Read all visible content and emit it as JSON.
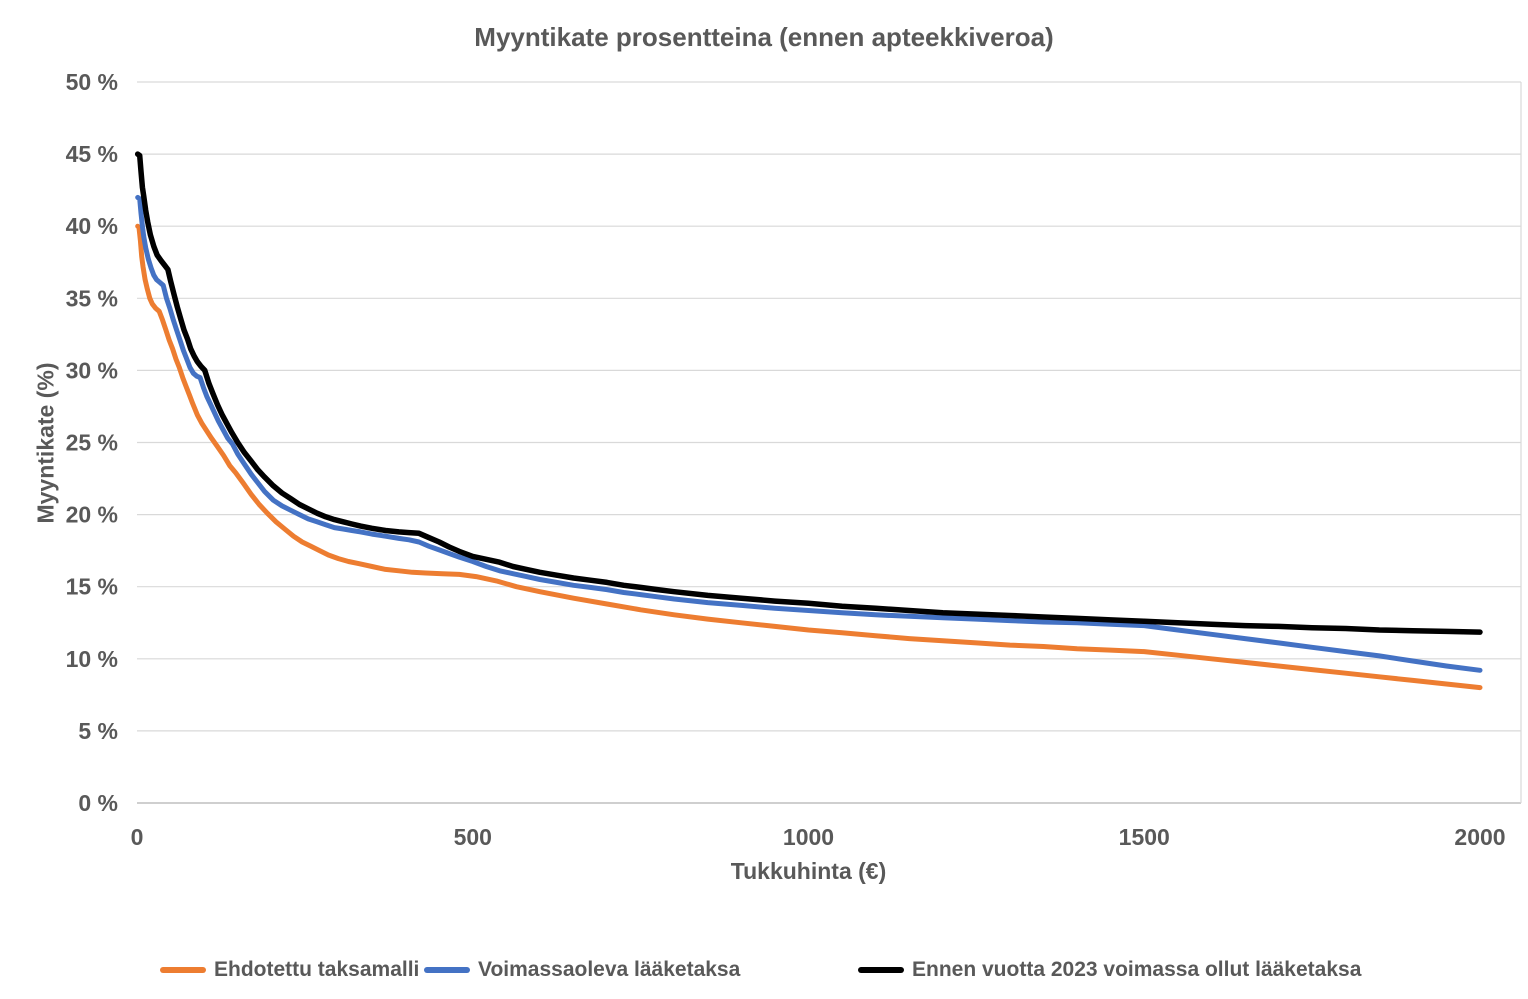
{
  "chart_data": {
    "type": "line",
    "title": "Myyntikate prosentteina (ennen apteekkiveroa)",
    "xlabel": "Tukkuhinta (€)",
    "ylabel": "Myyntikate (%)",
    "xlim": [
      0,
      2000
    ],
    "ylim": [
      0,
      50
    ],
    "x_ticks": [
      0,
      500,
      1000,
      1500,
      2000
    ],
    "y_ticks": [
      "0 %",
      "5 %",
      "10 %",
      "15 %",
      "20 %",
      "25 %",
      "30 %",
      "35 %",
      "40 %",
      "45 %",
      "50 %"
    ],
    "grid": "horizontal",
    "legend_position": "bottom",
    "series": [
      {
        "name": "Ehdotettu taksamalli",
        "color": "#ED7D31",
        "points": [
          [
            1,
            40
          ],
          [
            3,
            39.9
          ],
          [
            5,
            39.0
          ],
          [
            7,
            37.9
          ],
          [
            9,
            37.2
          ],
          [
            12,
            36.3
          ],
          [
            15,
            35.7
          ],
          [
            19,
            35.0
          ],
          [
            23,
            34.6
          ],
          [
            28,
            34.3
          ],
          [
            33,
            34.1
          ],
          [
            38,
            33.5
          ],
          [
            43,
            32.8
          ],
          [
            48,
            32.1
          ],
          [
            53,
            31.5
          ],
          [
            58,
            30.8
          ],
          [
            63,
            30.2
          ],
          [
            68,
            29.5
          ],
          [
            73,
            28.9
          ],
          [
            78,
            28.3
          ],
          [
            83,
            27.7
          ],
          [
            90,
            26.9
          ],
          [
            97,
            26.3
          ],
          [
            104,
            25.8
          ],
          [
            111,
            25.3
          ],
          [
            120,
            24.7
          ],
          [
            129,
            24.1
          ],
          [
            138,
            23.4
          ],
          [
            147,
            22.9
          ],
          [
            158,
            22.2
          ],
          [
            170,
            21.4
          ],
          [
            182,
            20.7
          ],
          [
            194,
            20.1
          ],
          [
            207,
            19.5
          ],
          [
            220,
            19.0
          ],
          [
            233,
            18.5
          ],
          [
            246,
            18.1
          ],
          [
            259,
            17.8
          ],
          [
            272,
            17.5
          ],
          [
            285,
            17.2
          ],
          [
            300,
            16.95
          ],
          [
            315,
            16.75
          ],
          [
            330,
            16.6
          ],
          [
            350,
            16.4
          ],
          [
            370,
            16.2
          ],
          [
            390,
            16.1
          ],
          [
            410,
            16.0
          ],
          [
            430,
            15.95
          ],
          [
            455,
            15.9
          ],
          [
            480,
            15.85
          ],
          [
            505,
            15.7
          ],
          [
            535,
            15.4
          ],
          [
            565,
            15.0
          ],
          [
            600,
            14.65
          ],
          [
            650,
            14.2
          ],
          [
            700,
            13.8
          ],
          [
            750,
            13.4
          ],
          [
            800,
            13.05
          ],
          [
            850,
            12.75
          ],
          [
            900,
            12.5
          ],
          [
            950,
            12.25
          ],
          [
            1000,
            12.0
          ],
          [
            1050,
            11.8
          ],
          [
            1100,
            11.6
          ],
          [
            1150,
            11.4
          ],
          [
            1200,
            11.25
          ],
          [
            1250,
            11.1
          ],
          [
            1300,
            10.95
          ],
          [
            1350,
            10.85
          ],
          [
            1400,
            10.7
          ],
          [
            1450,
            10.6
          ],
          [
            1500,
            10.5
          ],
          [
            1550,
            10.25
          ],
          [
            1600,
            10.0
          ],
          [
            1650,
            9.75
          ],
          [
            1700,
            9.5
          ],
          [
            1750,
            9.25
          ],
          [
            1800,
            9.0
          ],
          [
            1850,
            8.75
          ],
          [
            1900,
            8.5
          ],
          [
            1950,
            8.25
          ],
          [
            2000,
            8.0
          ]
        ]
      },
      {
        "name": "Voimassaoleva lääketaksa",
        "color": "#4472C4",
        "points": [
          [
            1,
            42
          ],
          [
            4,
            41.9
          ],
          [
            6,
            40.9
          ],
          [
            8,
            40.0
          ],
          [
            10,
            39.3
          ],
          [
            13,
            38.5
          ],
          [
            17,
            37.7
          ],
          [
            21,
            37.1
          ],
          [
            25,
            36.6
          ],
          [
            29,
            36.3
          ],
          [
            34,
            36.1
          ],
          [
            39,
            35.9
          ],
          [
            44,
            35.0
          ],
          [
            49,
            34.3
          ],
          [
            54,
            33.5
          ],
          [
            59,
            32.8
          ],
          [
            64,
            32.1
          ],
          [
            69,
            31.4
          ],
          [
            74,
            30.8
          ],
          [
            79,
            30.2
          ],
          [
            84,
            29.8
          ],
          [
            89,
            29.6
          ],
          [
            94,
            29.5
          ],
          [
            99,
            28.8
          ],
          [
            104,
            28.2
          ],
          [
            109,
            27.7
          ],
          [
            114,
            27.2
          ],
          [
            121,
            26.5
          ],
          [
            128,
            25.9
          ],
          [
            135,
            25.3
          ],
          [
            142,
            24.9
          ],
          [
            150,
            24.2
          ],
          [
            160,
            23.5
          ],
          [
            170,
            22.8
          ],
          [
            180,
            22.2
          ],
          [
            190,
            21.6
          ],
          [
            203,
            21.0
          ],
          [
            216,
            20.6
          ],
          [
            229,
            20.3
          ],
          [
            242,
            20.0
          ],
          [
            255,
            19.7
          ],
          [
            268,
            19.5
          ],
          [
            281,
            19.3
          ],
          [
            294,
            19.1
          ],
          [
            307,
            19.0
          ],
          [
            320,
            18.9
          ],
          [
            333,
            18.8
          ],
          [
            350,
            18.65
          ],
          [
            370,
            18.5
          ],
          [
            390,
            18.35
          ],
          [
            405,
            18.25
          ],
          [
            420,
            18.1
          ],
          [
            435,
            17.8
          ],
          [
            450,
            17.55
          ],
          [
            465,
            17.3
          ],
          [
            480,
            17.05
          ],
          [
            500,
            16.75
          ],
          [
            520,
            16.4
          ],
          [
            540,
            16.1
          ],
          [
            560,
            15.9
          ],
          [
            580,
            15.7
          ],
          [
            600,
            15.5
          ],
          [
            625,
            15.3
          ],
          [
            650,
            15.1
          ],
          [
            675,
            14.95
          ],
          [
            700,
            14.8
          ],
          [
            725,
            14.6
          ],
          [
            750,
            14.45
          ],
          [
            775,
            14.3
          ],
          [
            800,
            14.15
          ],
          [
            850,
            13.9
          ],
          [
            900,
            13.7
          ],
          [
            950,
            13.5
          ],
          [
            1000,
            13.35
          ],
          [
            1050,
            13.2
          ],
          [
            1100,
            13.05
          ],
          [
            1150,
            12.95
          ],
          [
            1200,
            12.85
          ],
          [
            1250,
            12.75
          ],
          [
            1300,
            12.65
          ],
          [
            1350,
            12.55
          ],
          [
            1400,
            12.5
          ],
          [
            1450,
            12.4
          ],
          [
            1500,
            12.3
          ],
          [
            1550,
            12.0
          ],
          [
            1600,
            11.7
          ],
          [
            1650,
            11.4
          ],
          [
            1700,
            11.1
          ],
          [
            1750,
            10.8
          ],
          [
            1800,
            10.5
          ],
          [
            1850,
            10.2
          ],
          [
            1900,
            9.85
          ],
          [
            1950,
            9.5
          ],
          [
            2000,
            9.2
          ]
        ]
      },
      {
        "name": "Ennen vuotta 2023 voimassa ollut lääketaksa",
        "color": "#000000",
        "points": [
          [
            1,
            45
          ],
          [
            4,
            44.9
          ],
          [
            6,
            43.8
          ],
          [
            8,
            42.7
          ],
          [
            10,
            42.1
          ],
          [
            13,
            41.1
          ],
          [
            16,
            40.3
          ],
          [
            20,
            39.4
          ],
          [
            25,
            38.6
          ],
          [
            30,
            38.0
          ],
          [
            36,
            37.6
          ],
          [
            41,
            37.3
          ],
          [
            46,
            37.0
          ],
          [
            50,
            36.2
          ],
          [
            55,
            35.3
          ],
          [
            60,
            34.4
          ],
          [
            65,
            33.6
          ],
          [
            70,
            32.8
          ],
          [
            75,
            32.2
          ],
          [
            80,
            31.5
          ],
          [
            85,
            31.0
          ],
          [
            90,
            30.6
          ],
          [
            95,
            30.3
          ],
          [
            101,
            30.0
          ],
          [
            107,
            29.1
          ],
          [
            113,
            28.4
          ],
          [
            120,
            27.6
          ],
          [
            127,
            26.9
          ],
          [
            134,
            26.3
          ],
          [
            141,
            25.7
          ],
          [
            150,
            25.0
          ],
          [
            160,
            24.3
          ],
          [
            170,
            23.7
          ],
          [
            180,
            23.1
          ],
          [
            190,
            22.6
          ],
          [
            203,
            22.0
          ],
          [
            216,
            21.5
          ],
          [
            229,
            21.1
          ],
          [
            242,
            20.7
          ],
          [
            255,
            20.4
          ],
          [
            268,
            20.1
          ],
          [
            281,
            19.85
          ],
          [
            294,
            19.65
          ],
          [
            307,
            19.5
          ],
          [
            320,
            19.35
          ],
          [
            333,
            19.2
          ],
          [
            350,
            19.05
          ],
          [
            370,
            18.9
          ],
          [
            390,
            18.8
          ],
          [
            405,
            18.75
          ],
          [
            420,
            18.7
          ],
          [
            435,
            18.4
          ],
          [
            450,
            18.1
          ],
          [
            465,
            17.75
          ],
          [
            480,
            17.45
          ],
          [
            500,
            17.1
          ],
          [
            520,
            16.9
          ],
          [
            540,
            16.7
          ],
          [
            560,
            16.4
          ],
          [
            580,
            16.2
          ],
          [
            600,
            16.0
          ],
          [
            625,
            15.8
          ],
          [
            650,
            15.6
          ],
          [
            675,
            15.45
          ],
          [
            700,
            15.3
          ],
          [
            725,
            15.1
          ],
          [
            750,
            14.95
          ],
          [
            775,
            14.8
          ],
          [
            800,
            14.65
          ],
          [
            850,
            14.4
          ],
          [
            900,
            14.2
          ],
          [
            950,
            14.0
          ],
          [
            1000,
            13.85
          ],
          [
            1050,
            13.65
          ],
          [
            1100,
            13.5
          ],
          [
            1150,
            13.35
          ],
          [
            1200,
            13.2
          ],
          [
            1250,
            13.1
          ],
          [
            1300,
            13.0
          ],
          [
            1350,
            12.9
          ],
          [
            1400,
            12.8
          ],
          [
            1450,
            12.7
          ],
          [
            1500,
            12.6
          ],
          [
            1550,
            12.5
          ],
          [
            1600,
            12.4
          ],
          [
            1650,
            12.3
          ],
          [
            1700,
            12.25
          ],
          [
            1750,
            12.15
          ],
          [
            1800,
            12.1
          ],
          [
            1850,
            12.0
          ],
          [
            1900,
            11.95
          ],
          [
            1950,
            11.9
          ],
          [
            2000,
            11.85
          ]
        ]
      }
    ]
  },
  "styles": {
    "text_color": "#595959",
    "gridline_color": "#D9D9D9",
    "axisline_color": "#BFBFBF",
    "background": "#FFFFFF"
  }
}
